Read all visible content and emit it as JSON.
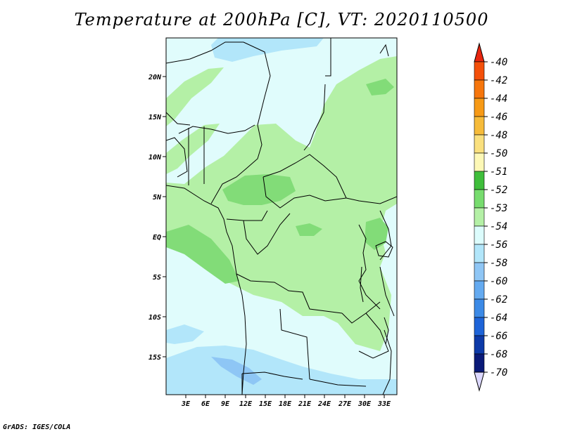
{
  "title": "Temperature at 200hPa [C], VT: 2020110500",
  "credit": "GrADS: IGES/COLA",
  "map": {
    "lat_labels": [
      "20N",
      "15N",
      "10N",
      "5N",
      "EQ",
      "5S",
      "10S",
      "15S"
    ],
    "lon_labels": [
      "3E",
      "6E",
      "9E",
      "12E",
      "15E",
      "18E",
      "21E",
      "24E",
      "27E",
      "30E",
      "33E"
    ]
  },
  "colorbar": {
    "labels": [
      "-40",
      "-42",
      "-44",
      "-46",
      "-48",
      "-50",
      "-51",
      "-52",
      "-53",
      "-54",
      "-56",
      "-58",
      "-60",
      "-62",
      "-64",
      "-66",
      "-68",
      "-70"
    ],
    "colors": [
      "#e8260f",
      "#f4500a",
      "#f6760c",
      "#f79a16",
      "#f6bb3a",
      "#fae07e",
      "#fdf8b6",
      "#3fbe3b",
      "#77dc6e",
      "#b4f0a6",
      "#dcfcfc",
      "#b2e6fa",
      "#8fc6f5",
      "#64aaf0",
      "#3c8ae6",
      "#1e64d8",
      "#0d3aa8",
      "#0a1a78",
      "#dcd8ff"
    ]
  },
  "palette": {
    "light_cyan": "#e0fcfc",
    "light_green": "#b4f0a6",
    "mid_green": "#82dc78",
    "light_blue": "#b2e6fa",
    "mid_blue": "#8ec6f5"
  }
}
